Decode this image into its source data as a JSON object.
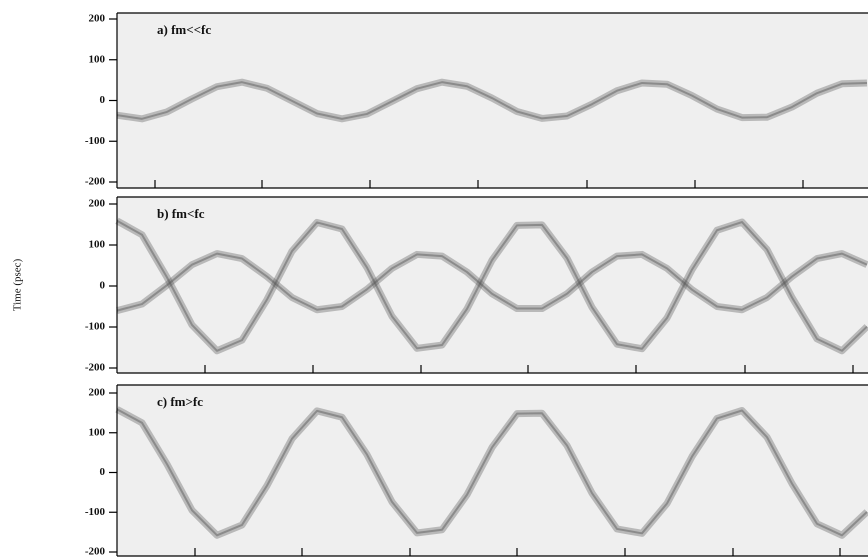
{
  "chart_data": [
    {
      "type": "line",
      "title": "a) fm<<fc",
      "x": [
        0,
        25,
        50,
        75,
        100,
        125,
        150,
        175,
        200,
        225,
        250,
        275,
        300,
        325,
        350,
        375,
        400,
        425,
        450,
        475,
        500,
        525,
        550,
        575,
        600,
        625,
        650,
        675,
        700,
        725,
        750
      ],
      "series": [
        {
          "color": "#555555",
          "values": [
            -36,
            -45,
            -28,
            4,
            34,
            45,
            30,
            -1,
            -32,
            -45,
            -33,
            -2,
            29,
            45,
            35,
            6,
            -27,
            -44,
            -38,
            -9,
            24,
            43,
            40,
            12,
            -21,
            -42,
            -41,
            -16,
            18,
            41,
            43
          ]
        }
      ],
      "xlim": [
        0,
        751
      ],
      "xticks": [
        38,
        145,
        253,
        361,
        470,
        578,
        686
      ],
      "ylim": [
        -200,
        200
      ],
      "yticks": [
        -200,
        -100,
        0,
        100,
        200
      ]
    },
    {
      "type": "line",
      "title": "b) fm<fc",
      "ylabel": "Time (psec)",
      "x": [
        0,
        25,
        50,
        75,
        100,
        125,
        150,
        175,
        200,
        225,
        250,
        275,
        300,
        325,
        350,
        375,
        400,
        425,
        450,
        475,
        500,
        525,
        550,
        575,
        600,
        625,
        650,
        675,
        700,
        725,
        750
      ],
      "series": [
        {
          "color": "#555555",
          "values": [
            159,
            125,
            21,
            -95,
            -158,
            -132,
            -33,
            85,
            155,
            139,
            45,
            -74,
            -152,
            -144,
            -56,
            63,
            148,
            149,
            68,
            -52,
            -142,
            -153,
            -78,
            40,
            136,
            156,
            89,
            -28,
            -129,
            -158,
            -99
          ]
        },
        {
          "color": "#555555",
          "values": [
            -60,
            -44,
            2,
            52,
            79,
            67,
            23,
            -28,
            -58,
            -50,
            -8,
            43,
            77,
            73,
            34,
            -19,
            -55,
            -55,
            -19,
            34,
            73,
            77,
            43,
            -9,
            -50,
            -58,
            -28,
            23,
            67,
            79,
            52
          ]
        }
      ],
      "xlim": [
        0,
        751
      ],
      "xticks": [
        88,
        196,
        304,
        411,
        519,
        628,
        736
      ],
      "ylim": [
        -200,
        200
      ],
      "yticks": [
        -200,
        -100,
        0,
        100,
        200
      ]
    },
    {
      "type": "line",
      "title": "c) fm>fc",
      "x": [
        0,
        25,
        50,
        75,
        100,
        125,
        150,
        175,
        200,
        225,
        250,
        275,
        300,
        325,
        350,
        375,
        400,
        425,
        450,
        475,
        500,
        525,
        550,
        575,
        600,
        625,
        650,
        675,
        700,
        725,
        750
      ],
      "series": [
        {
          "color": "#555555",
          "values": [
            159,
            125,
            21,
            -95,
            -158,
            -132,
            -33,
            85,
            155,
            139,
            45,
            -74,
            -152,
            -144,
            -56,
            63,
            148,
            149,
            68,
            -52,
            -142,
            -153,
            -78,
            40,
            136,
            156,
            89,
            -28,
            -129,
            -158,
            -99
          ]
        }
      ],
      "xlim": [
        0,
        751
      ],
      "xticks": [
        78,
        185,
        293,
        400,
        508,
        616,
        723
      ],
      "ylim": [
        -200,
        200
      ],
      "yticks": [
        -200,
        -100,
        0,
        100,
        200
      ]
    }
  ]
}
